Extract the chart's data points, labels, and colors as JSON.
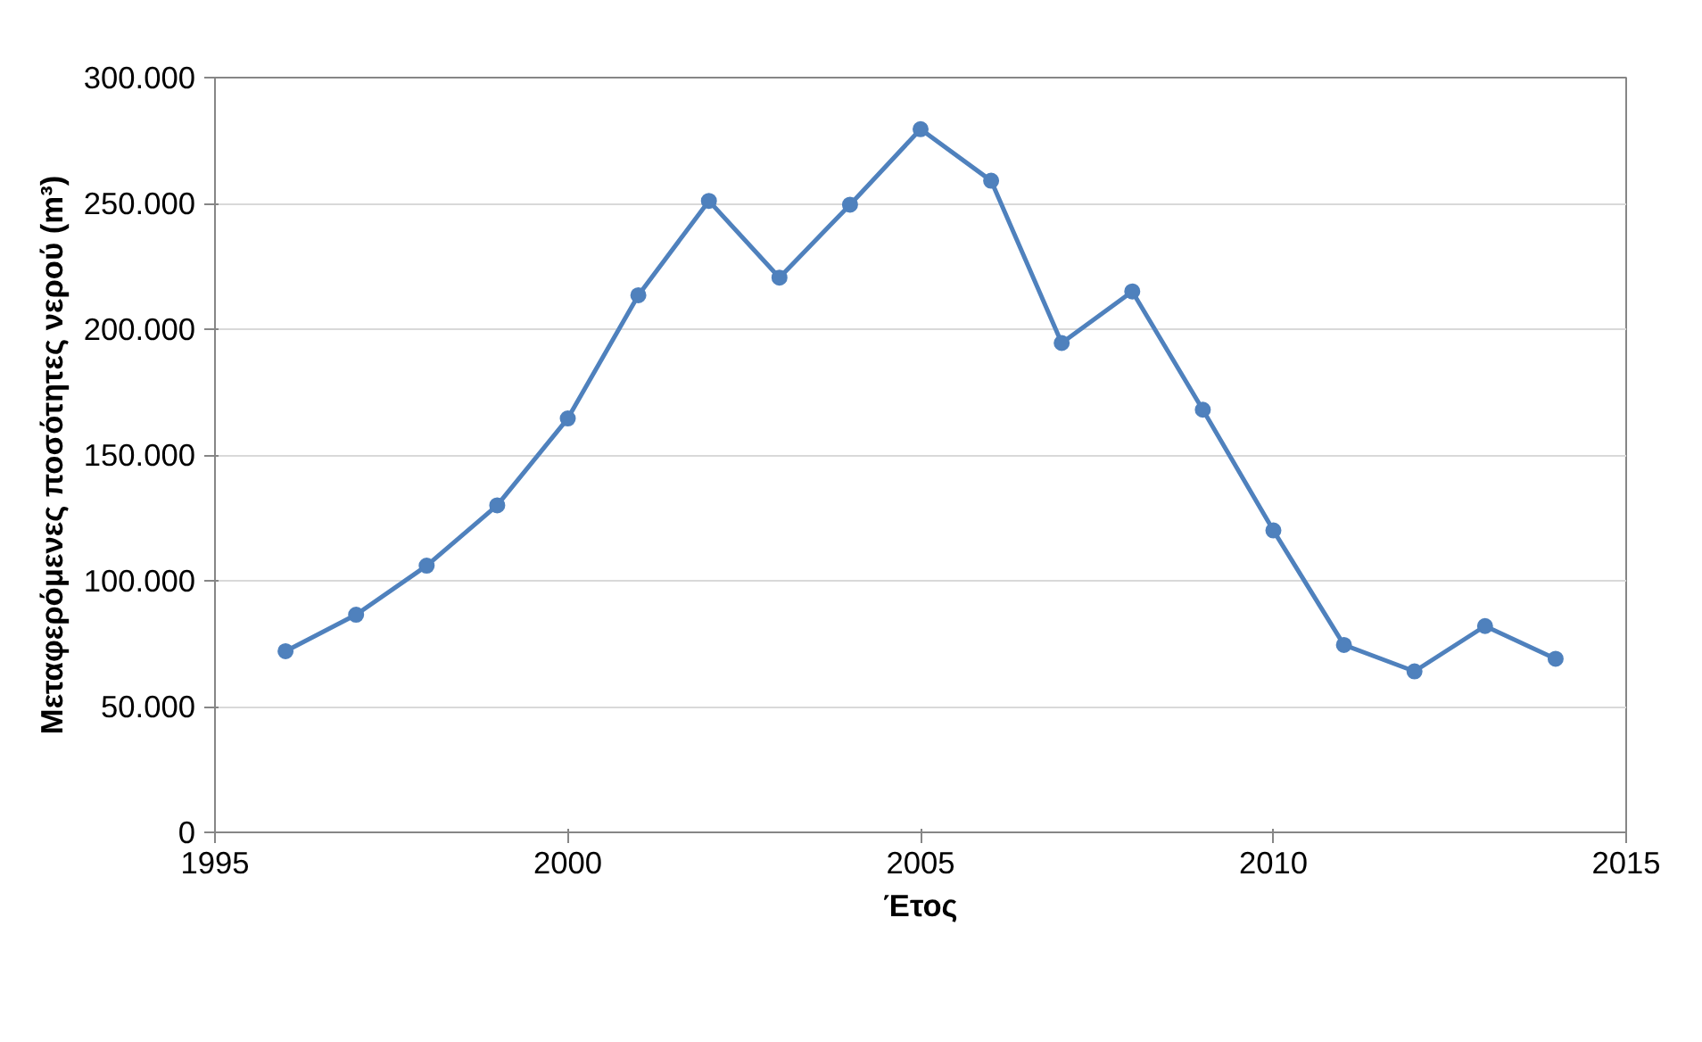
{
  "chart_data": {
    "type": "line",
    "xlabel": "Έτος",
    "ylabel": "Μεταφερόμενες ποσότητες νερού (m³)",
    "x": [
      1996,
      1997,
      1998,
      1999,
      2000,
      2001,
      2002,
      2003,
      2004,
      2005,
      2006,
      2007,
      2008,
      2009,
      2010,
      2011,
      2012,
      2013,
      2014
    ],
    "series": [
      {
        "color": "#4f81bd",
        "values": [
          72000,
          86500,
          106000,
          130000,
          164500,
          213500,
          251000,
          220500,
          249500,
          279500,
          259000,
          194500,
          215000,
          168000,
          120000,
          74500,
          64000,
          82000,
          69000
        ]
      }
    ],
    "xlim": [
      1995,
      2015
    ],
    "xticks": [
      1995,
      2000,
      2005,
      2010,
      2015
    ],
    "ylim": [
      0,
      300000
    ],
    "yticks": [
      {
        "value": 0,
        "label": "0"
      },
      {
        "value": 50000,
        "label": "50.000"
      },
      {
        "value": 100000,
        "label": "100.000"
      },
      {
        "value": 150000,
        "label": "150.000"
      },
      {
        "value": 200000,
        "label": "200.000"
      },
      {
        "value": 250000,
        "label": "250.000"
      },
      {
        "value": 300000,
        "label": "300.000"
      }
    ],
    "grid": "y",
    "marker": "circle",
    "line_style": "solid"
  }
}
